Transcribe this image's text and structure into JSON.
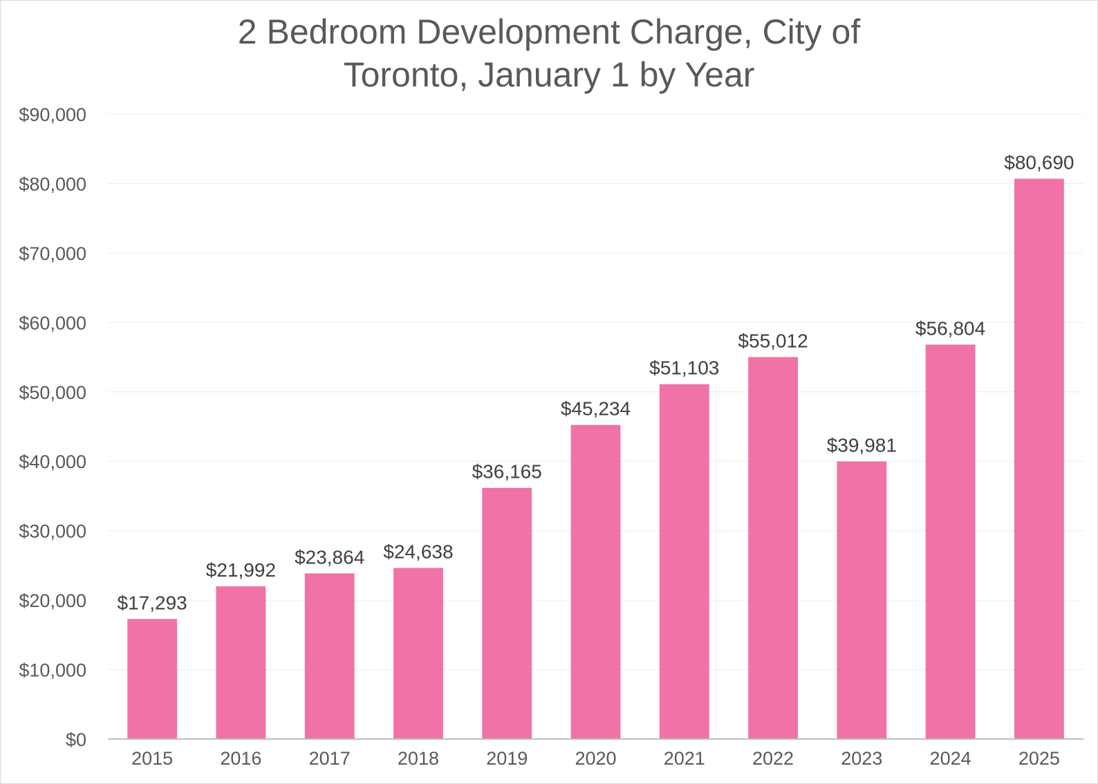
{
  "chart_data": {
    "type": "bar",
    "title_lines": [
      "2 Bedroom Development Charge, City of",
      "Toronto, January 1 by Year"
    ],
    "categories": [
      "2015",
      "2016",
      "2017",
      "2018",
      "2019",
      "2020",
      "2021",
      "2022",
      "2023",
      "2024",
      "2025"
    ],
    "values": [
      17293,
      21992,
      23864,
      24638,
      36165,
      45234,
      51103,
      55012,
      39981,
      56804,
      80690
    ],
    "data_labels": [
      "$17,293",
      "$21,992",
      "$23,864",
      "$24,638",
      "$36,165",
      "$45,234",
      "$51,103",
      "$55,012",
      "$39,981",
      "$56,804",
      "$80,690"
    ],
    "y_ticks": [
      0,
      10000,
      20000,
      30000,
      40000,
      50000,
      60000,
      70000,
      80000,
      90000
    ],
    "y_tick_labels": [
      "$0",
      "$10,000",
      "$20,000",
      "$30,000",
      "$40,000",
      "$50,000",
      "$60,000",
      "$70,000",
      "$80,000",
      "$90,000"
    ],
    "xlabel": "",
    "ylabel": "",
    "ylim": [
      0,
      90000
    ],
    "grid": true,
    "legend": "none",
    "bar_color": "#f072a6"
  }
}
